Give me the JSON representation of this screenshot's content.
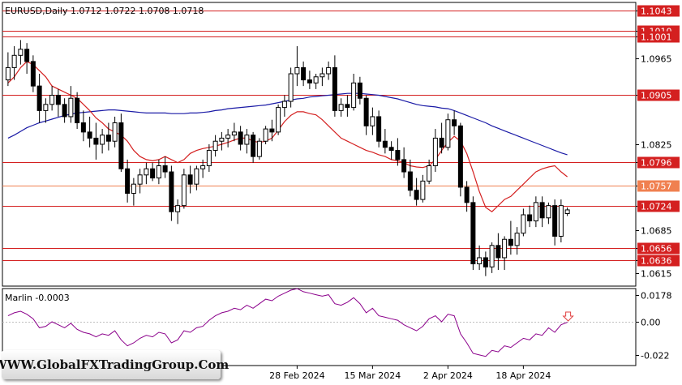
{
  "header": {
    "title": "EURUSD,Daily  1.0712 1.0722 1.0708 1.0718"
  },
  "indicator": {
    "label": "Marlin -0.0003"
  },
  "watermark": {
    "text": "WWW.GlobalFXTradingGroup.Com"
  },
  "colors": {
    "bull": "#000000",
    "bear": "#000000",
    "ma_slow": "#1a1aa6",
    "ma_fast": "#d42020",
    "level": "#d42020",
    "level_alt": "#f08050",
    "oscillator": "#8b008b",
    "signal_arrow": "#e04040"
  },
  "chart_data": [
    {
      "type": "candlestick",
      "title": "EURUSD,Daily  1.0712 1.0722 1.0708 1.0718",
      "ylim": [
        1.0595,
        1.1055
      ],
      "y_ticks": [
        "1.1043",
        "1.1010",
        "1.1001",
        "1.0965",
        "1.0905",
        "1.0825",
        "1.0796",
        "1.0757",
        "1.0724",
        "1.0685",
        "1.0656",
        "1.0636",
        "1.0615"
      ],
      "x_labels": [
        {
          "index": 46,
          "label": "28 Feb 2024"
        },
        {
          "index": 58,
          "label": "15 Mar 2024"
        },
        {
          "index": 70,
          "label": "2 Apr 2024"
        },
        {
          "index": 82,
          "label": "18 Apr 2024"
        }
      ],
      "levels": [
        {
          "value": 1.1043,
          "label": "1.1043",
          "color": "#d42020"
        },
        {
          "value": 1.101,
          "label": "1.1010",
          "color": "#d42020"
        },
        {
          "value": 1.1001,
          "label": "1.1001",
          "color": "#d42020"
        },
        {
          "value": 1.0905,
          "label": "1.0905",
          "color": "#d42020"
        },
        {
          "value": 1.0796,
          "label": "1.0796",
          "color": "#d42020"
        },
        {
          "value": 1.0757,
          "label": "1.0757",
          "color": "#f08050"
        },
        {
          "value": 1.0724,
          "label": "1.0724",
          "color": "#d42020"
        },
        {
          "value": 1.0656,
          "label": "1.0656",
          "color": "#d42020"
        },
        {
          "value": 1.0636,
          "label": "1.0636",
          "color": "#d42020"
        }
      ],
      "ohlc": [
        [
          1.093,
          1.0975,
          1.092,
          1.095
        ],
        [
          1.095,
          1.0985,
          1.093,
          1.097
        ],
        [
          1.097,
          1.0995,
          1.0955,
          1.098
        ],
        [
          1.098,
          1.099,
          1.094,
          1.096
        ],
        [
          1.096,
          1.097,
          1.091,
          1.092
        ],
        [
          1.092,
          1.094,
          1.086,
          1.088
        ],
        [
          1.088,
          1.09,
          1.086,
          1.089
        ],
        [
          1.089,
          1.092,
          1.088,
          1.0905
        ],
        [
          1.0905,
          1.0915,
          1.087,
          1.089
        ],
        [
          1.089,
          1.09,
          1.086,
          1.087
        ],
        [
          1.087,
          1.092,
          1.086,
          1.09
        ],
        [
          1.09,
          1.091,
          1.085,
          1.086
        ],
        [
          1.086,
          1.088,
          1.083,
          1.0845
        ],
        [
          1.0845,
          1.087,
          1.082,
          1.0835
        ],
        [
          1.0835,
          1.086,
          1.08,
          1.0825
        ],
        [
          1.0825,
          1.085,
          1.081,
          1.084
        ],
        [
          1.084,
          1.086,
          1.0815,
          1.083
        ],
        [
          1.083,
          1.087,
          1.082,
          1.086
        ],
        [
          1.086,
          1.0875,
          1.078,
          1.0785
        ],
        [
          1.0785,
          1.08,
          1.073,
          1.0745
        ],
        [
          1.0745,
          1.077,
          1.0725,
          1.076
        ],
        [
          1.076,
          1.0785,
          1.0745,
          1.0775
        ],
        [
          1.0775,
          1.0795,
          1.076,
          1.0785
        ],
        [
          1.0785,
          1.0795,
          1.0765,
          1.077
        ],
        [
          1.077,
          1.08,
          1.076,
          1.079
        ],
        [
          1.079,
          1.0805,
          1.077,
          1.078
        ],
        [
          1.078,
          1.079,
          1.07,
          1.0715
        ],
        [
          1.0715,
          1.0735,
          1.0695,
          1.0725
        ],
        [
          1.0725,
          1.0785,
          1.072,
          1.0775
        ],
        [
          1.0775,
          1.079,
          1.0745,
          1.076
        ],
        [
          1.076,
          1.079,
          1.075,
          1.0785
        ],
        [
          1.0785,
          1.08,
          1.077,
          1.079
        ],
        [
          1.079,
          1.0825,
          1.078,
          1.0815
        ],
        [
          1.0815,
          1.084,
          1.0805,
          1.083
        ],
        [
          1.083,
          1.0845,
          1.0815,
          1.0835
        ],
        [
          1.0835,
          1.085,
          1.082,
          1.084
        ],
        [
          1.084,
          1.086,
          1.083,
          1.0845
        ],
        [
          1.0845,
          1.0855,
          1.0815,
          1.0825
        ],
        [
          1.0825,
          1.085,
          1.081,
          1.084
        ],
        [
          1.084,
          1.0845,
          1.0795,
          1.0805
        ],
        [
          1.0805,
          1.0835,
          1.08,
          1.083
        ],
        [
          1.083,
          1.0855,
          1.0825,
          1.085
        ],
        [
          1.085,
          1.0865,
          1.083,
          1.0845
        ],
        [
          1.0845,
          1.089,
          1.084,
          1.0885
        ],
        [
          1.0885,
          1.0905,
          1.087,
          1.0895
        ],
        [
          1.0895,
          1.095,
          1.0885,
          1.094
        ],
        [
          1.094,
          1.0985,
          1.092,
          1.095
        ],
        [
          1.095,
          1.096,
          1.092,
          1.093
        ],
        [
          1.093,
          1.0945,
          1.0915,
          1.0925
        ],
        [
          1.0925,
          1.094,
          1.0915,
          1.0935
        ],
        [
          1.0935,
          1.095,
          1.092,
          1.094
        ],
        [
          1.094,
          1.096,
          1.093,
          1.095
        ],
        [
          1.095,
          1.097,
          1.087,
          1.088
        ],
        [
          1.088,
          1.09,
          1.087,
          1.089
        ],
        [
          1.089,
          1.0905,
          1.087,
          1.0885
        ],
        [
          1.0885,
          1.094,
          1.088,
          1.0925
        ],
        [
          1.0925,
          1.0935,
          1.089,
          1.09
        ],
        [
          1.09,
          1.0905,
          1.084,
          1.0855
        ],
        [
          1.0855,
          1.0885,
          1.084,
          1.087
        ],
        [
          1.087,
          1.088,
          1.082,
          1.083
        ],
        [
          1.083,
          1.085,
          1.081,
          1.082
        ],
        [
          1.082,
          1.083,
          1.08,
          1.0815
        ],
        [
          1.0815,
          1.0835,
          1.079,
          1.08
        ],
        [
          1.08,
          1.082,
          1.077,
          1.078
        ],
        [
          1.078,
          1.08,
          1.074,
          1.075
        ],
        [
          1.075,
          1.077,
          1.0725,
          1.0735
        ],
        [
          1.0735,
          1.0775,
          1.073,
          1.0765
        ],
        [
          1.0765,
          1.08,
          1.076,
          1.079
        ],
        [
          1.079,
          1.085,
          1.078,
          1.0835
        ],
        [
          1.0835,
          1.086,
          1.081,
          1.082
        ],
        [
          1.082,
          1.0875,
          1.0815,
          1.0865
        ],
        [
          1.0865,
          1.088,
          1.084,
          1.0855
        ],
        [
          1.0855,
          1.086,
          1.074,
          1.0755
        ],
        [
          1.0755,
          1.0765,
          1.0715,
          1.073
        ],
        [
          1.073,
          1.074,
          1.062,
          1.063
        ],
        [
          1.063,
          1.066,
          1.062,
          1.064
        ],
        [
          1.064,
          1.065,
          1.061,
          1.0625
        ],
        [
          1.0625,
          1.0665,
          1.0615,
          1.066
        ],
        [
          1.066,
          1.068,
          1.062,
          1.064
        ],
        [
          1.064,
          1.0675,
          1.062,
          1.067
        ],
        [
          1.067,
          1.07,
          1.0645,
          1.066
        ],
        [
          1.066,
          1.069,
          1.0645,
          1.068
        ],
        [
          1.068,
          1.072,
          1.0675,
          1.071
        ],
        [
          1.071,
          1.0725,
          1.069,
          1.07
        ],
        [
          1.07,
          1.074,
          1.069,
          1.073
        ],
        [
          1.073,
          1.074,
          1.069,
          1.0705
        ],
        [
          1.0705,
          1.073,
          1.0695,
          1.0725
        ],
        [
          1.0725,
          1.0735,
          1.066,
          1.0675
        ],
        [
          1.0675,
          1.0735,
          1.0665,
          1.0725
        ],
        [
          1.0712,
          1.0722,
          1.0708,
          1.0718
        ]
      ],
      "series": [
        {
          "values": [
            1.0835,
            1.084,
            1.0846,
            1.0852,
            1.0856,
            1.086,
            1.0863,
            1.0866,
            1.0869,
            1.0872,
            1.0874,
            1.0876,
            1.0877,
            1.0878,
            1.0879,
            1.088,
            1.0881,
            1.0881,
            1.088,
            1.0879,
            1.0878,
            1.0877,
            1.0876,
            1.0876,
            1.0876,
            1.0876,
            1.0875,
            1.0875,
            1.0875,
            1.0876,
            1.0876,
            1.0877,
            1.0878,
            1.088,
            1.0881,
            1.0883,
            1.0884,
            1.0885,
            1.0886,
            1.0887,
            1.0888,
            1.0889,
            1.0891,
            1.0893,
            1.0895,
            1.0897,
            1.0899,
            1.09,
            1.0902,
            1.0903,
            1.0904,
            1.0905,
            1.0906,
            1.0907,
            1.0908,
            1.0908,
            1.0908,
            1.0907,
            1.0906,
            1.0905,
            1.0903,
            1.0901,
            1.0899,
            1.0896,
            1.0893,
            1.089,
            1.0888,
            1.0887,
            1.0886,
            1.0884,
            1.0883,
            1.088,
            1.0876,
            1.0872,
            1.0868,
            1.0864,
            1.086,
            1.0855,
            1.0851,
            1.0847,
            1.0843,
            1.0839,
            1.0835,
            1.0831,
            1.0827,
            1.0823,
            1.0819,
            1.0815,
            1.0811,
            1.0808
          ]
        },
        {
          "values": [
            1.0925,
            1.0935,
            1.095,
            1.096,
            1.0955,
            1.0945,
            1.0935,
            1.092,
            1.0915,
            1.091,
            1.0905,
            1.09,
            1.089,
            1.088,
            1.0868,
            1.086,
            1.085,
            1.0845,
            1.084,
            1.083,
            1.0815,
            1.0805,
            1.08,
            1.0798,
            1.08,
            1.0805,
            1.08,
            1.0795,
            1.08,
            1.081,
            1.0815,
            1.0818,
            1.082,
            1.0822,
            1.0825,
            1.0828,
            1.0832,
            1.0835,
            1.0835,
            1.083,
            1.0828,
            1.083,
            1.0835,
            1.0848,
            1.0862,
            1.0872,
            1.0878,
            1.0878,
            1.0875,
            1.0873,
            1.0865,
            1.0855,
            1.0845,
            1.0835,
            1.083,
            1.0825,
            1.082,
            1.0815,
            1.0812,
            1.0808,
            1.0805,
            1.08,
            1.0798,
            1.0795,
            1.079,
            1.0788,
            1.0787,
            1.079,
            1.08,
            1.0815,
            1.0828,
            1.0838,
            1.083,
            1.081,
            1.078,
            1.0748,
            1.0722,
            1.0715,
            1.0725,
            1.0735,
            1.074,
            1.075,
            1.076,
            1.077,
            1.078,
            1.0785,
            1.0788,
            1.079,
            1.078,
            1.0772
          ]
        }
      ]
    },
    {
      "type": "line",
      "title": "Marlin -0.0003",
      "ylim": [
        -0.028,
        0.021
      ],
      "y_ticks": [
        "0.0178",
        "0.00",
        "-0.022"
      ],
      "series": [
        {
          "name": "Marlin",
          "values": [
            0.004,
            0.006,
            0.007,
            0.005,
            0.002,
            -0.004,
            -0.003,
            0.0,
            -0.002,
            -0.004,
            -0.001,
            -0.005,
            -0.007,
            -0.008,
            -0.01,
            -0.008,
            -0.009,
            -0.006,
            -0.012,
            -0.016,
            -0.014,
            -0.011,
            -0.009,
            -0.01,
            -0.007,
            -0.008,
            -0.014,
            -0.012,
            -0.006,
            -0.007,
            -0.004,
            -0.003,
            0.001,
            0.004,
            0.006,
            0.007,
            0.009,
            0.008,
            0.011,
            0.009,
            0.012,
            0.015,
            0.014,
            0.017,
            0.019,
            0.021,
            0.022,
            0.02,
            0.019,
            0.018,
            0.017,
            0.018,
            0.012,
            0.011,
            0.013,
            0.016,
            0.012,
            0.006,
            0.009,
            0.004,
            0.003,
            0.002,
            0.001,
            -0.002,
            -0.004,
            -0.006,
            -0.003,
            0.002,
            0.004,
            0.0,
            0.005,
            0.004,
            -0.008,
            -0.014,
            -0.021,
            -0.022,
            -0.023,
            -0.019,
            -0.02,
            -0.016,
            -0.017,
            -0.014,
            -0.011,
            -0.012,
            -0.008,
            -0.009,
            -0.004,
            -0.007,
            -0.002,
            -0.0003
          ]
        }
      ]
    }
  ]
}
